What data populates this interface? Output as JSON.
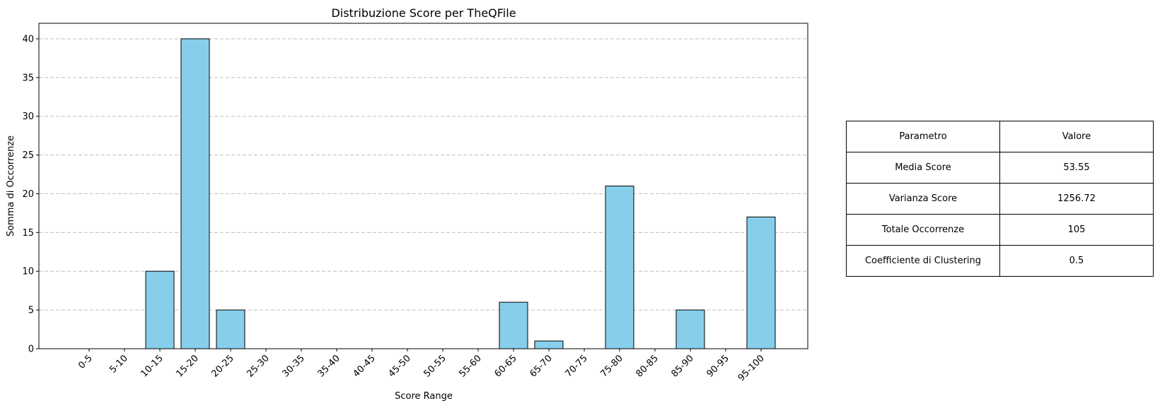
{
  "chart_data": {
    "type": "bar",
    "title": "Distribuzione Score per TheQFile",
    "xlabel": "Score Range",
    "ylabel": "Somma di Occorrenze",
    "categories": [
      "0-5",
      "5-10",
      "10-15",
      "15-20",
      "20-25",
      "25-30",
      "30-35",
      "35-40",
      "40-45",
      "45-50",
      "50-55",
      "55-60",
      "60-65",
      "65-70",
      "70-75",
      "75-80",
      "80-85",
      "85-90",
      "90-95",
      "95-100"
    ],
    "values": [
      0,
      0,
      10,
      40,
      5,
      0,
      0,
      0,
      0,
      0,
      0,
      0,
      6,
      1,
      0,
      21,
      0,
      5,
      0,
      17
    ],
    "ylim": [
      0,
      42
    ],
    "yticks": [
      0,
      5,
      10,
      15,
      20,
      25,
      30,
      35,
      40
    ],
    "grid": "y-dashed",
    "bar_color": "#87ceeb",
    "bar_edge_color": "#000000"
  },
  "stats_table": {
    "headers": [
      "Parametro",
      "Valore"
    ],
    "rows": [
      [
        "Media Score",
        "53.55"
      ],
      [
        "Varianza Score",
        "1256.72"
      ],
      [
        "Totale Occorrenze",
        "105"
      ],
      [
        "Coefficiente di Clustering",
        "0.5"
      ]
    ]
  }
}
